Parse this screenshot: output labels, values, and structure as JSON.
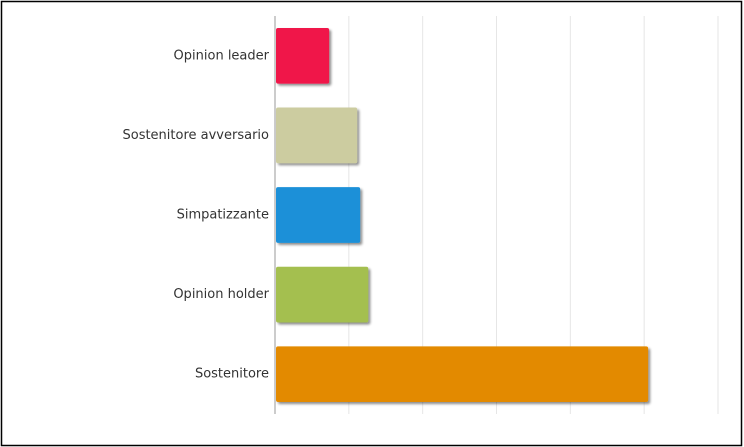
{
  "chart_data": {
    "type": "bar",
    "orientation": "horizontal",
    "categories": [
      "Opinion leader",
      "Sostenitore avversario",
      "Simpatizzante",
      "Opinion holder",
      "Sostenitore"
    ],
    "values": [
      0.72,
      1.1,
      1.14,
      1.25,
      5.04
    ],
    "colors": [
      "#f0154a",
      "#cccca0",
      "#1a90d8",
      "#a4bf50",
      "#e38a00"
    ],
    "xlim": [
      0,
      6
    ],
    "xticks": [
      0,
      1,
      2,
      3,
      4,
      5,
      6
    ],
    "grid": true
  }
}
